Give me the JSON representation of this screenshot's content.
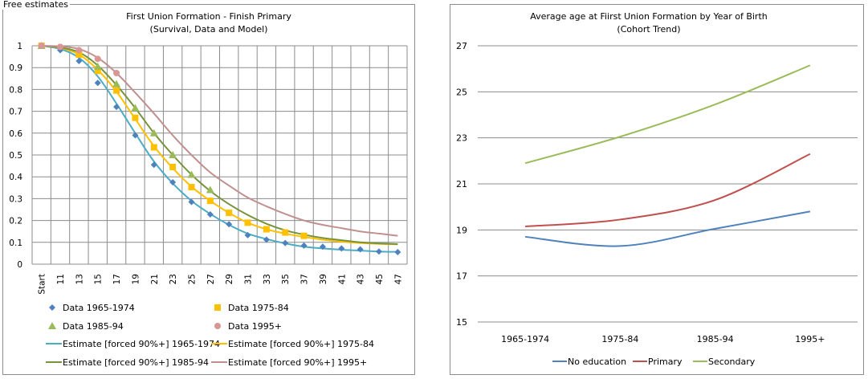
{
  "page_label": "Free estimates",
  "chart_data": [
    {
      "type": "line",
      "title": "First Union Formation - Finish Primary",
      "subtitle": "(Survival, Data and Model)",
      "xlabel": "",
      "ylabel": "",
      "ylim": [
        0,
        1
      ],
      "yticks": [
        "0",
        "0.1",
        "0.2",
        "0.3",
        "0.4",
        "0.5",
        "0.6",
        "0.7",
        "0.8",
        "0.9",
        "1"
      ],
      "grid": "both",
      "legend_position": "bottom",
      "categories": [
        "Start",
        "11",
        "13",
        "15",
        "17",
        "19",
        "21",
        "23",
        "25",
        "27",
        "29",
        "31",
        "33",
        "35",
        "37",
        "39",
        "41",
        "43",
        "45",
        "47"
      ],
      "series": [
        {
          "name": "Data 1965-1974",
          "kind": "marker",
          "marker": "diamond",
          "color": "#4f81bd",
          "values": [
            1,
            0.98,
            0.93,
            0.83,
            0.72,
            0.59,
            0.455,
            0.375,
            0.285,
            0.228,
            0.183,
            0.133,
            0.112,
            0.097,
            0.085,
            0.08,
            0.072,
            0.068,
            0.058,
            0.055
          ]
        },
        {
          "name": "Data 1975-84",
          "kind": "marker",
          "marker": "square",
          "color": "#ffc000",
          "values": [
            1,
            null,
            0.96,
            0.885,
            0.795,
            0.67,
            0.535,
            0.445,
            0.353,
            0.29,
            0.235,
            0.19,
            0.16,
            0.145,
            0.13,
            null,
            null,
            null,
            null,
            null
          ]
        },
        {
          "name": "Data 1985-94",
          "kind": "marker",
          "marker": "triangle",
          "color": "#9bbb59",
          "values": [
            1,
            null,
            null,
            0.905,
            0.825,
            0.715,
            0.6,
            0.5,
            0.41,
            0.34,
            null,
            null,
            null,
            null,
            null,
            null,
            null,
            null,
            null,
            null
          ]
        },
        {
          "name": "Data 1995+",
          "kind": "marker",
          "marker": "circle",
          "color": "#d99694",
          "values": [
            1,
            0.995,
            0.98,
            0.94,
            0.875,
            null,
            null,
            null,
            null,
            null,
            null,
            null,
            null,
            null,
            null,
            null,
            null,
            null,
            null,
            null
          ]
        },
        {
          "name": "Estimate [forced 90%+] 1965-1974",
          "kind": "line",
          "color": "#4bacc6",
          "values": [
            1,
            0.985,
            0.945,
            0.86,
            0.735,
            0.6,
            0.47,
            0.37,
            0.29,
            0.23,
            0.18,
            0.14,
            0.115,
            0.095,
            0.08,
            0.072,
            0.066,
            0.062,
            0.058,
            0.056
          ]
        },
        {
          "name": "Estimate [forced 90%+] 1975-84",
          "kind": "line",
          "color": "#ffc000",
          "values": [
            1,
            0.99,
            0.96,
            0.89,
            0.79,
            0.665,
            0.54,
            0.44,
            0.355,
            0.29,
            0.235,
            0.19,
            0.16,
            0.14,
            0.125,
            0.112,
            0.103,
            0.097,
            0.093,
            0.091
          ]
        },
        {
          "name": "Estimate [forced 90%+] 1985-94",
          "kind": "line",
          "color": "#77933c",
          "values": [
            1,
            0.992,
            0.97,
            0.91,
            0.82,
            0.715,
            0.6,
            0.5,
            0.41,
            0.335,
            0.275,
            0.225,
            0.185,
            0.155,
            0.135,
            0.12,
            0.11,
            0.1,
            0.095,
            0.092
          ]
        },
        {
          "name": "Estimate [forced 90%+] 1995+",
          "kind": "line",
          "color": "#c0908e",
          "values": [
            1,
            0.997,
            0.985,
            0.945,
            0.875,
            0.785,
            0.69,
            0.59,
            0.5,
            0.42,
            0.36,
            0.305,
            0.265,
            0.23,
            0.2,
            0.18,
            0.165,
            0.15,
            0.14,
            0.13
          ]
        }
      ]
    },
    {
      "type": "line",
      "title": "Average age at Fiirst Union Formation by Year of Birth",
      "subtitle": "(Cohort Trend)",
      "xlabel": "",
      "ylabel": "",
      "ylim": [
        15,
        27
      ],
      "yticks": [
        "15",
        "17",
        "19",
        "21",
        "23",
        "25",
        "27"
      ],
      "grid": "horizontal",
      "legend_position": "bottom",
      "categories": [
        "1965-1974",
        "1975-84",
        "1985-94",
        "1995+"
      ],
      "series": [
        {
          "name": "No education",
          "color": "#4f81bd",
          "values": [
            18.7,
            18.3,
            19.05,
            19.8
          ]
        },
        {
          "name": "Primary",
          "color": "#c0504d",
          "values": [
            19.15,
            19.45,
            20.3,
            22.3
          ]
        },
        {
          "name": "Secondary",
          "color": "#9bbb59",
          "values": [
            21.9,
            23.05,
            24.45,
            26.15
          ]
        }
      ]
    }
  ]
}
